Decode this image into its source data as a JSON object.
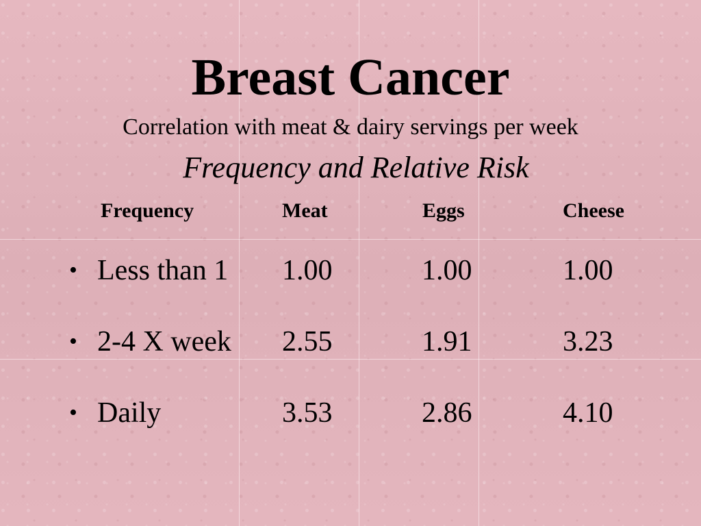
{
  "slide": {
    "title": "Breast Cancer",
    "subtitle": "Correlation with meat & dairy servings per week",
    "heading": "Frequency and Relative Risk"
  },
  "table": {
    "columns": [
      "Frequency",
      "Meat",
      "Eggs",
      "Cheese"
    ],
    "bullet": "•",
    "rows": [
      {
        "label": "Less than 1",
        "meat": "1.00",
        "eggs": "1.00",
        "cheese": "1.00"
      },
      {
        "label": "2-4 X week",
        "meat": "2.55",
        "eggs": "1.91",
        "cheese": "3.23"
      },
      {
        "label": "Daily",
        "meat": "3.53",
        "eggs": "2.86",
        "cheese": "4.10"
      }
    ]
  },
  "colors": {
    "background": "#e2b3bb",
    "text": "#000000"
  }
}
